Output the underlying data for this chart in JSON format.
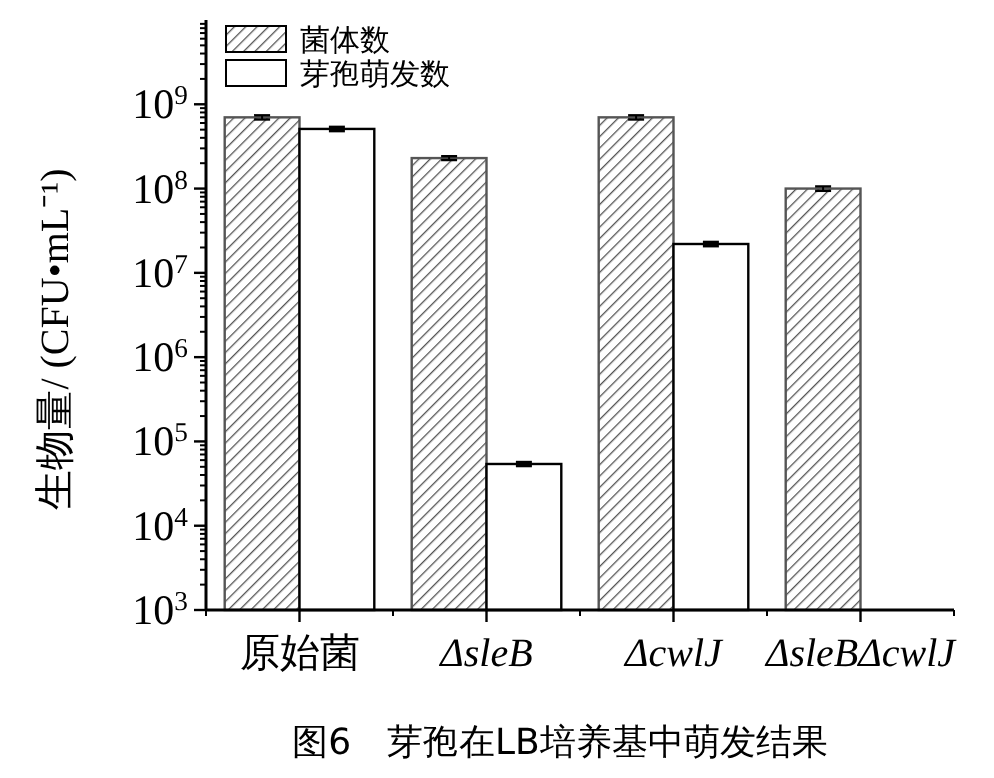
{
  "chart_data": {
    "type": "bar",
    "title": "图6　芽孢在LB培养基中萌发结果",
    "ylabel": "生物量/ (CFU•mL⁻¹)",
    "categories": [
      "原始菌",
      "ΔsleB",
      "ΔcwlJ",
      "ΔsleBΔcwlJ"
    ],
    "series": [
      {
        "name": "菌体数",
        "color": "#555555",
        "values": [
          700000000,
          230000000,
          700000000,
          100000000
        ],
        "errors": [
          40000000,
          12000000,
          40000000,
          6000000
        ]
      },
      {
        "name": "芽孢萌发数",
        "color": "#ffffff",
        "values": [
          510000000,
          54000,
          22000000,
          null
        ],
        "errors": [
          30000000,
          3000,
          1300000,
          null
        ]
      }
    ],
    "log": true,
    "ylim": [
      1000,
      10000000000
    ],
    "yticks": [
      {
        "value": 1000,
        "label": "10$^{3}$"
      },
      {
        "value": 10000,
        "label": "10$^{4}$"
      },
      {
        "value": 100000,
        "label": "10$^{5}$"
      },
      {
        "value": 1000000,
        "label": "10$^{6}$"
      },
      {
        "value": 10000000,
        "label": "10$^{7}$"
      },
      {
        "value": 100000000,
        "label": "10$^{8}$"
      },
      {
        "value": 1000000000,
        "label": "10$^{9}$"
      }
    ],
    "legend": "top left"
  }
}
